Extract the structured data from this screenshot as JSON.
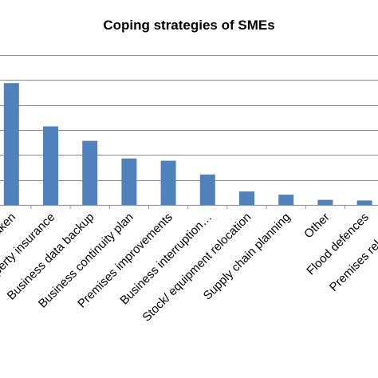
{
  "chart_data": {
    "type": "bar",
    "title": "Coping strategies of SMEs",
    "xlabel": "",
    "ylabel": "",
    "categories": [
      "No action taken",
      "Property insurance",
      "Business data backup",
      "Business continuity plan",
      "Premises improvements",
      "Business interruption…",
      "Stock/ equipment relocation",
      "Supply chain planning",
      "Other",
      "Flood defences",
      "Premises relocation"
    ],
    "values": [
      38,
      24.5,
      20,
      14.5,
      13.8,
      9.5,
      4.2,
      3.2,
      1.6,
      1.4,
      1.4
    ],
    "ylim": [
      0,
      47
    ],
    "gridlines": [
      0,
      7.8,
      15.6,
      23.4,
      31.2,
      39,
      46.8
    ],
    "grid": true,
    "legend": "none",
    "bar_color": "#4f81bd"
  }
}
